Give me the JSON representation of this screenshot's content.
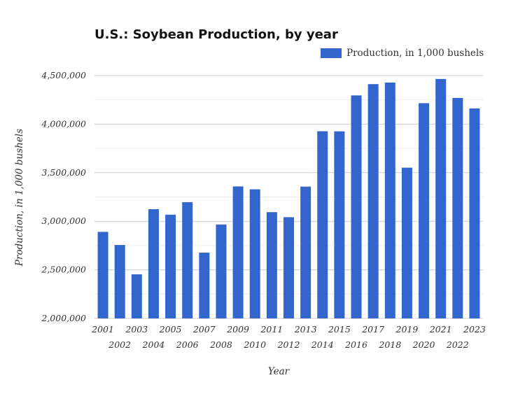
{
  "chart_data": {
    "type": "bar",
    "title": "U.S.: Soybean Production, by year",
    "xlabel": "Year",
    "ylabel": "Production, in 1,000 bushels",
    "ylim": [
      2000000,
      4500000
    ],
    "yticks": [
      "2,000,000",
      "2,500,000",
      "3,000,000",
      "3,500,000",
      "4,000,000",
      "4,500,000"
    ],
    "grid": true,
    "legend_position": "top-right",
    "color": "#3366cc",
    "categories": [
      "2001",
      "2002",
      "2003",
      "2004",
      "2005",
      "2006",
      "2007",
      "2008",
      "2009",
      "2010",
      "2011",
      "2012",
      "2013",
      "2014",
      "2015",
      "2016",
      "2017",
      "2018",
      "2019",
      "2020",
      "2021",
      "2022",
      "2023"
    ],
    "series": [
      {
        "name": "Production, in 1,000 bushels",
        "values": [
          2891000,
          2756000,
          2454000,
          3124000,
          3068000,
          3197000,
          2677000,
          2967000,
          3359000,
          3329000,
          3094000,
          3042000,
          3357000,
          3927000,
          3926000,
          4296000,
          4412000,
          4428000,
          3552000,
          4216000,
          4465000,
          4270000,
          4162000
        ]
      }
    ]
  }
}
